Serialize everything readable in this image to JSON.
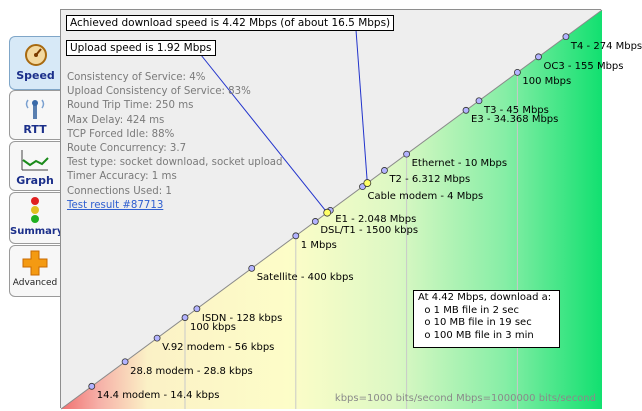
{
  "tabs": [
    {
      "label": "Speed",
      "icon": "gauge-icon",
      "active": true
    },
    {
      "label": "RTT",
      "icon": "antenna-icon",
      "active": false
    },
    {
      "label": "Graph",
      "icon": "line-graph-icon",
      "active": false
    },
    {
      "label": "Summary",
      "icon": "traffic-light-icon",
      "active": false
    },
    {
      "label": "Advanced",
      "icon": "plus-icon",
      "active": false
    }
  ],
  "callouts": {
    "download": "Achieved download speed is 4.42 Mbps (of about 16.5 Mbps)",
    "upload": "Upload speed is 1.92 Mbps"
  },
  "stats": [
    "Consistency of Service: 4%",
    "Upload Consistency of Service: 83%",
    "Round Trip Time: 250 ms",
    "Max Delay: 424 ms",
    "TCP Forced Idle: 88%",
    "Route Concurrency: 3.7",
    "Test type: socket download, socket upload",
    "Timer Accuracy: 1 ms",
    "Connections Used: 1"
  ],
  "test_result_link": "Test result #87713",
  "speed_points": [
    {
      "label": "14.4 modem - 14.4 kbps",
      "kbps": 14.4
    },
    {
      "label": "28.8 modem - 28.8 kbps",
      "kbps": 28.8
    },
    {
      "label": "V.92 modem - 56 kbps",
      "kbps": 56
    },
    {
      "label": "100 kbps",
      "kbps": 100
    },
    {
      "label": "ISDN - 128 kbps",
      "kbps": 128
    },
    {
      "label": "Satellite - 400 kbps",
      "kbps": 400
    },
    {
      "label": "1 Mbps",
      "kbps": 1000
    },
    {
      "label": "DSL/T1 - 1500 kbps",
      "kbps": 1500
    },
    {
      "label": "E1 - 2.048 Mbps",
      "kbps": 2048
    },
    {
      "label": "Cable modem - 4 Mbps",
      "kbps": 4000
    },
    {
      "label": "T2 - 6.312 Mbps",
      "kbps": 6312
    },
    {
      "label": "Ethernet - 10 Mbps",
      "kbps": 10000
    },
    {
      "label": "E3 - 34.368 Mbps",
      "kbps": 34368
    },
    {
      "label": "T3 - 45 Mbps",
      "kbps": 45000
    },
    {
      "label": "100 Mbps",
      "kbps": 100000
    },
    {
      "label": "OC3 - 155 Mbps",
      "kbps": 155000
    },
    {
      "label": "T4 - 274 Mbps",
      "kbps": 274000
    }
  ],
  "measured": {
    "download_mbps": 4.42,
    "upload_mbps": 1.92
  },
  "info_box": {
    "title": "At 4.42 Mbps, download a:",
    "items": [
      "1 MB file in 2 sec",
      "10 MB file in 19 sec",
      "100 MB file in 3 min"
    ]
  },
  "footer": "kbps=1000 bits/second  Mbps=1000000 bits/second",
  "colors": {
    "marker": "#b3b3ff",
    "measured_marker": "#ffff66",
    "callout_line": "#2233cc"
  }
}
